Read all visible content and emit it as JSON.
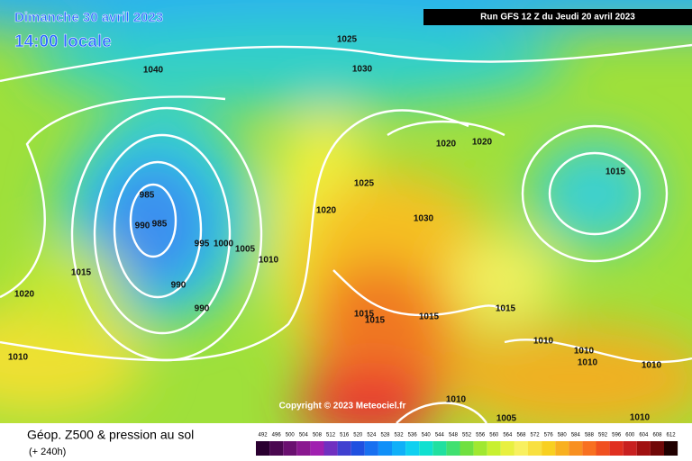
{
  "header": {
    "date": "Dimanche 30 avril 2023",
    "time": "14:00 locale",
    "run": "Run GFS 12 Z du Jeudi 20 avril 2023"
  },
  "copyright": "Copyright © 2023 Meteociel.fr",
  "isobar_labels": [
    "1025",
    "1030",
    "1040",
    "1020",
    "1020",
    "1015",
    "1025",
    "985",
    "990",
    "985",
    "1020",
    "1030",
    "995",
    "1000",
    "1005",
    "1010",
    "1015",
    "1020",
    "990",
    "990",
    "1015",
    "1015",
    "1015",
    "1015",
    "1010",
    "1010",
    "1010",
    "1010",
    "1010",
    "1010",
    "1005",
    "1010"
  ],
  "footer": {
    "title": "Géop. Z500 & pression au sol",
    "lead": "(+ 240h)"
  },
  "legend": {
    "labels": [
      492,
      496,
      500,
      504,
      508,
      512,
      516,
      520,
      524,
      528,
      532,
      536,
      540,
      544,
      548,
      552,
      556,
      560,
      564,
      568,
      572,
      576,
      580,
      584,
      588,
      592,
      596,
      600,
      604,
      608,
      612
    ]
  }
}
